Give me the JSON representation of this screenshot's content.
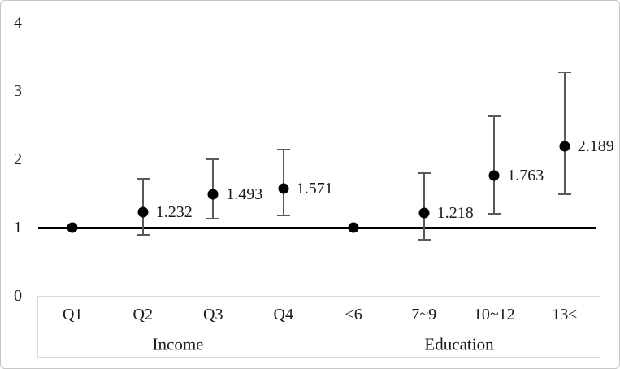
{
  "figure": {
    "background": "#ffffff",
    "border_color": "#c6c6c6"
  },
  "chart_data": {
    "type": "scatter",
    "subtype": "forest-plot-with-error-bars",
    "title": "",
    "xlabel": "",
    "ylabel": "",
    "ylim": [
      0,
      4
    ],
    "yticks": [
      "0",
      "1",
      "2",
      "3",
      "4"
    ],
    "grid": false,
    "legend": null,
    "reference_line_y": 1,
    "categories": [
      "Q1",
      "Q2",
      "Q3",
      "Q4",
      "≤6",
      "7~9",
      "10~12",
      "13≤"
    ],
    "groups": [
      {
        "label": "Income",
        "categories": [
          "Q1",
          "Q2",
          "Q3",
          "Q4"
        ]
      },
      {
        "label": "Education",
        "categories": [
          "≤6",
          "7~9",
          "10~12",
          "13≤"
        ]
      }
    ],
    "points": [
      {
        "category": "Q1",
        "group": "Income",
        "value": 1.0,
        "value_label": "",
        "ci_low": null,
        "ci_high": null,
        "is_reference": true
      },
      {
        "category": "Q2",
        "group": "Income",
        "value": 1.232,
        "value_label": "1.232",
        "ci_low": 0.89,
        "ci_high": 1.72,
        "is_reference": false
      },
      {
        "category": "Q3",
        "group": "Income",
        "value": 1.493,
        "value_label": "1.493",
        "ci_low": 1.13,
        "ci_high": 2.0,
        "is_reference": false
      },
      {
        "category": "Q4",
        "group": "Income",
        "value": 1.571,
        "value_label": "1.571",
        "ci_low": 1.18,
        "ci_high": 2.14,
        "is_reference": false
      },
      {
        "category": "≤6",
        "group": "Education",
        "value": 1.0,
        "value_label": "",
        "ci_low": null,
        "ci_high": null,
        "is_reference": true
      },
      {
        "category": "7~9",
        "group": "Education",
        "value": 1.218,
        "value_label": "1.218",
        "ci_low": 0.82,
        "ci_high": 1.8,
        "is_reference": false
      },
      {
        "category": "10~12",
        "group": "Education",
        "value": 1.763,
        "value_label": "1.763",
        "ci_low": 1.2,
        "ci_high": 2.63,
        "is_reference": false
      },
      {
        "category": "13≤",
        "group": "Education",
        "value": 2.189,
        "value_label": "2.189",
        "ci_low": 1.49,
        "ci_high": 3.27,
        "is_reference": false
      }
    ],
    "colors": {
      "point": "#000000",
      "error_bar": "#595959",
      "reference_line": "#000000",
      "axis_table_border": "#d9d9d9",
      "text": "#1a1a1a"
    }
  }
}
